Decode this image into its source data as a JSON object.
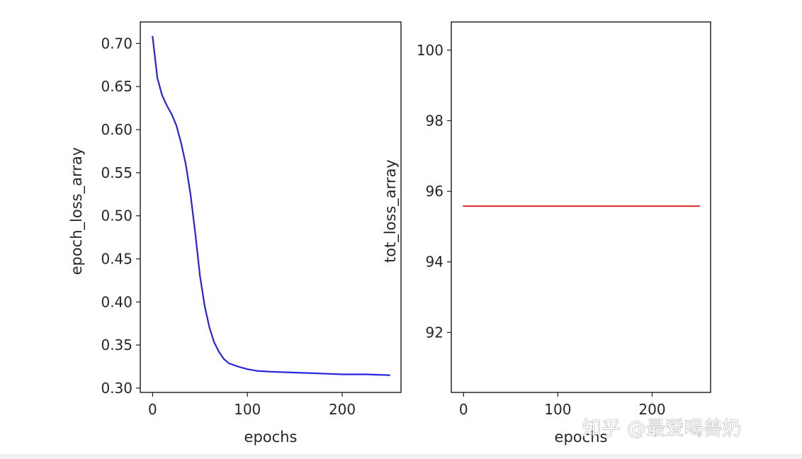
{
  "chart_data": [
    {
      "type": "line",
      "xlabel": "epochs",
      "ylabel": "epoch_loss_array",
      "xlim": [
        -13,
        262
      ],
      "ylim": [
        0.295,
        0.725
      ],
      "xticks": [
        0,
        100,
        200
      ],
      "xtick_labels": [
        "0",
        "100",
        "200"
      ],
      "yticks": [
        0.3,
        0.35,
        0.4,
        0.45,
        0.5,
        0.55,
        0.6,
        0.65,
        0.7
      ],
      "ytick_labels": [
        "0.30",
        "0.35",
        "0.40",
        "0.45",
        "0.50",
        "0.55",
        "0.60",
        "0.65",
        "0.70"
      ],
      "grid": false,
      "series": [
        {
          "color": "#2323e0",
          "x": [
            0,
            5,
            10,
            15,
            20,
            25,
            30,
            35,
            40,
            45,
            50,
            55,
            60,
            65,
            70,
            75,
            80,
            90,
            100,
            110,
            125,
            150,
            175,
            200,
            225,
            250
          ],
          "y": [
            0.708,
            0.66,
            0.64,
            0.628,
            0.618,
            0.605,
            0.585,
            0.56,
            0.525,
            0.48,
            0.43,
            0.395,
            0.37,
            0.353,
            0.342,
            0.334,
            0.329,
            0.325,
            0.322,
            0.32,
            0.319,
            0.318,
            0.317,
            0.316,
            0.316,
            0.315
          ]
        }
      ]
    },
    {
      "type": "line",
      "xlabel": "epochs",
      "ylabel": "tot_loss_array",
      "xlim": [
        -13,
        262
      ],
      "ylim": [
        90.3,
        100.8
      ],
      "xticks": [
        0,
        100,
        200
      ],
      "xtick_labels": [
        "0",
        "100",
        "200"
      ],
      "yticks": [
        92,
        94,
        96,
        98,
        100
      ],
      "ytick_labels": [
        "92",
        "94",
        "96",
        "98",
        "100"
      ],
      "grid": false,
      "series": [
        {
          "color": "#e03a3a",
          "x": [
            0,
            250
          ],
          "y": [
            95.58,
            95.58
          ]
        }
      ]
    }
  ],
  "watermark": {
    "text": "知乎 @最爱喝兽奶"
  }
}
